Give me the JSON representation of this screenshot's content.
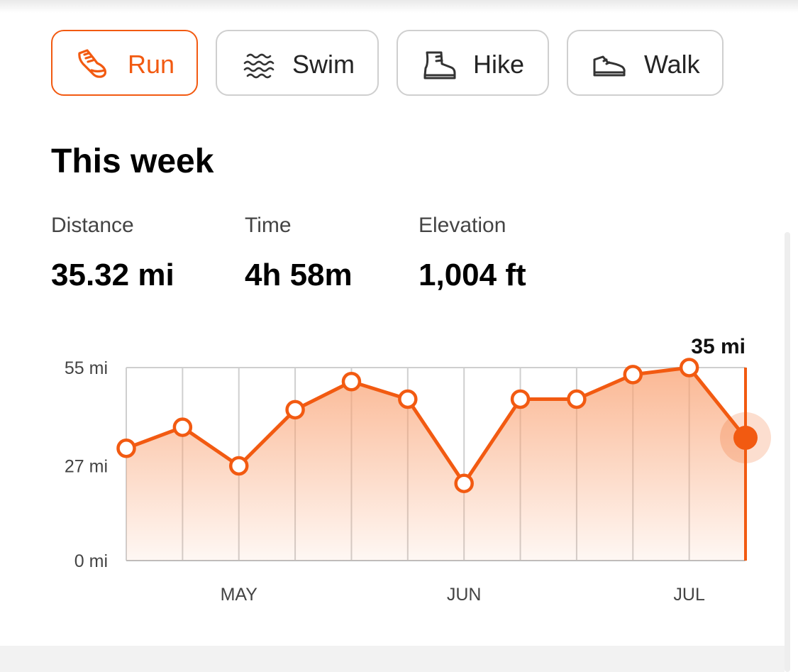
{
  "tabs": [
    {
      "label": "Run",
      "icon": "running-shoe-icon",
      "active": true
    },
    {
      "label": "Swim",
      "icon": "waves-icon",
      "active": false
    },
    {
      "label": "Hike",
      "icon": "hiking-boot-icon",
      "active": false
    },
    {
      "label": "Walk",
      "icon": "walking-shoe-icon",
      "active": false
    }
  ],
  "section_title": "This week",
  "stats": {
    "distance": {
      "label": "Distance",
      "value": "35.32 mi"
    },
    "time": {
      "label": "Time",
      "value": "4h 58m"
    },
    "elevation": {
      "label": "Elevation",
      "value": "1,004 ft"
    }
  },
  "colors": {
    "accent": "#f25a11",
    "grid": "#cfcfcf",
    "inactive_text": "#242424"
  },
  "chart_data": {
    "type": "area",
    "y_ticks": [
      {
        "value": 0,
        "label": "0 mi"
      },
      {
        "value": 27,
        "label": "27 mi"
      },
      {
        "value": 55,
        "label": "55 mi"
      }
    ],
    "ylim": [
      0,
      55
    ],
    "x_labels": [
      {
        "index": 2,
        "label": "MAY"
      },
      {
        "index": 6,
        "label": "JUN"
      },
      {
        "index": 10,
        "label": "JUL"
      }
    ],
    "values": [
      32,
      38,
      27,
      43,
      51,
      46,
      22,
      46,
      46,
      53,
      55,
      35
    ],
    "selected_index": 11,
    "selected_label": "35 mi",
    "grid": true
  }
}
